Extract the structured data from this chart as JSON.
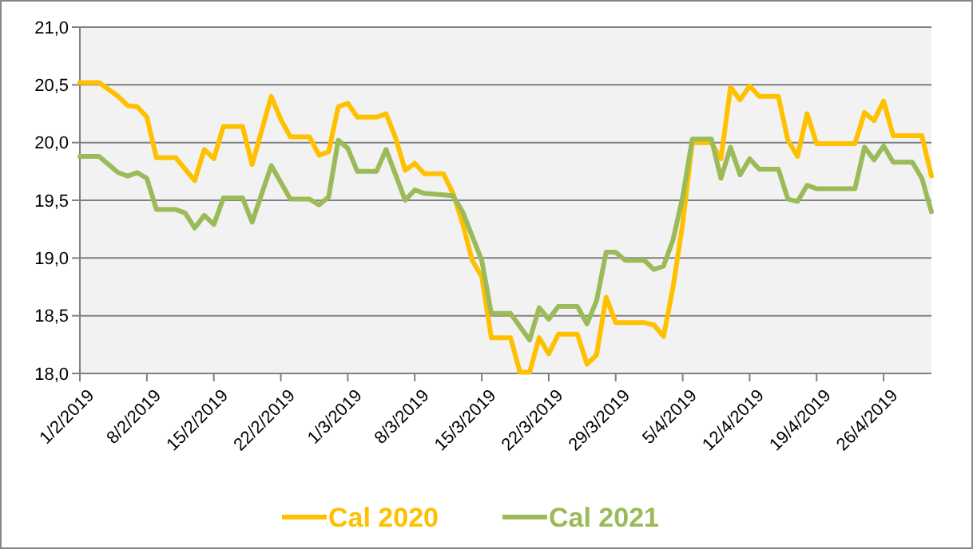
{
  "chart_data": {
    "type": "line",
    "ylim": [
      18,
      21
    ],
    "yticks": [
      {
        "value": 18,
        "label": "18,0"
      },
      {
        "value": 18.5,
        "label": "18,5"
      },
      {
        "value": 19,
        "label": "19,0"
      },
      {
        "value": 19.5,
        "label": "19,5"
      },
      {
        "value": 20,
        "label": "20,0"
      },
      {
        "value": 20.5,
        "label": "20,5"
      },
      {
        "value": 21,
        "label": "21,0"
      }
    ],
    "xlim": [
      "2019-02-01",
      "2019-05-01"
    ],
    "xticks": [
      {
        "value": "2019-02-01",
        "label": "1/2/2019"
      },
      {
        "value": "2019-02-08",
        "label": "8/2/2019"
      },
      {
        "value": "2019-02-15",
        "label": "15/2/2019"
      },
      {
        "value": "2019-02-22",
        "label": "22/2/2019"
      },
      {
        "value": "2019-03-01",
        "label": "1/3/2019"
      },
      {
        "value": "2019-03-08",
        "label": "8/3/2019"
      },
      {
        "value": "2019-03-15",
        "label": "15/3/2019"
      },
      {
        "value": "2019-03-22",
        "label": "22/3/2019"
      },
      {
        "value": "2019-03-29",
        "label": "29/3/2019"
      },
      {
        "value": "2019-04-05",
        "label": "5/4/2019"
      },
      {
        "value": "2019-04-12",
        "label": "12/4/2019"
      },
      {
        "value": "2019-04-19",
        "label": "19/4/2019"
      },
      {
        "value": "2019-04-26",
        "label": "26/4/2019"
      }
    ],
    "grid": "y",
    "legend": "bottom",
    "marker": "none",
    "line_style": "solid",
    "series": [
      {
        "name": "Cal 2020",
        "color": "#ffc000",
        "x": [
          "2019-02-01",
          "2019-02-03",
          "2019-02-05",
          "2019-02-06",
          "2019-02-07",
          "2019-02-08",
          "2019-02-09",
          "2019-02-11",
          "2019-02-13",
          "2019-02-14",
          "2019-02-15",
          "2019-02-16",
          "2019-02-18",
          "2019-02-19",
          "2019-02-21",
          "2019-02-22",
          "2019-02-23",
          "2019-02-25",
          "2019-02-26",
          "2019-02-27",
          "2019-02-28",
          "2019-03-01",
          "2019-03-02",
          "2019-03-04",
          "2019-03-05",
          "2019-03-06",
          "2019-03-07",
          "2019-03-08",
          "2019-03-09",
          "2019-03-11",
          "2019-03-12",
          "2019-03-13",
          "2019-03-14",
          "2019-03-15",
          "2019-03-16",
          "2019-03-18",
          "2019-03-19",
          "2019-03-20",
          "2019-03-21",
          "2019-03-22",
          "2019-03-23",
          "2019-03-25",
          "2019-03-26",
          "2019-03-27",
          "2019-03-28",
          "2019-03-29",
          "2019-04-01",
          "2019-04-02",
          "2019-04-03",
          "2019-04-04",
          "2019-04-05",
          "2019-04-06",
          "2019-04-08",
          "2019-04-09",
          "2019-04-10",
          "2019-04-11",
          "2019-04-12",
          "2019-04-13",
          "2019-04-15",
          "2019-04-16",
          "2019-04-17",
          "2019-04-18",
          "2019-04-19",
          "2019-04-23",
          "2019-04-24",
          "2019-04-25",
          "2019-04-26",
          "2019-04-27",
          "2019-04-30",
          "2019-05-01"
        ],
        "values": [
          20.52,
          20.52,
          20.4,
          20.32,
          20.31,
          20.22,
          19.87,
          19.87,
          19.67,
          19.94,
          19.86,
          20.14,
          20.14,
          19.81,
          20.4,
          20.2,
          20.05,
          20.05,
          19.89,
          19.92,
          20.31,
          20.34,
          20.22,
          20.22,
          20.25,
          20.04,
          19.76,
          19.82,
          19.73,
          19.73,
          19.56,
          19.3,
          18.98,
          18.84,
          18.31,
          18.31,
          18.01,
          18.01,
          18.31,
          18.17,
          18.34,
          18.34,
          18.08,
          18.16,
          18.66,
          18.44,
          18.44,
          18.42,
          18.32,
          18.75,
          19.3,
          20.0,
          20.0,
          19.86,
          20.48,
          20.37,
          20.49,
          20.4,
          20.4,
          20.02,
          19.88,
          20.25,
          19.99,
          19.99,
          20.26,
          20.19,
          20.36,
          20.06,
          20.06,
          19.71
        ]
      },
      {
        "name": "Cal 2021",
        "color": "#9bbb59",
        "x": [
          "2019-02-01",
          "2019-02-03",
          "2019-02-05",
          "2019-02-06",
          "2019-02-07",
          "2019-02-08",
          "2019-02-09",
          "2019-02-11",
          "2019-02-12",
          "2019-02-13",
          "2019-02-14",
          "2019-02-15",
          "2019-02-16",
          "2019-02-18",
          "2019-02-19",
          "2019-02-21",
          "2019-02-23",
          "2019-02-25",
          "2019-02-26",
          "2019-02-27",
          "2019-02-28",
          "2019-03-01",
          "2019-03-02",
          "2019-03-04",
          "2019-03-05",
          "2019-03-07",
          "2019-03-08",
          "2019-03-09",
          "2019-03-12",
          "2019-03-13",
          "2019-03-14",
          "2019-03-15",
          "2019-03-16",
          "2019-03-18",
          "2019-03-20",
          "2019-03-21",
          "2019-03-22",
          "2019-03-23",
          "2019-03-25",
          "2019-03-26",
          "2019-03-27",
          "2019-03-28",
          "2019-03-29",
          "2019-03-30",
          "2019-04-01",
          "2019-04-02",
          "2019-04-03",
          "2019-04-04",
          "2019-04-05",
          "2019-04-06",
          "2019-04-08",
          "2019-04-09",
          "2019-04-10",
          "2019-04-11",
          "2019-04-12",
          "2019-04-13",
          "2019-04-15",
          "2019-04-16",
          "2019-04-17",
          "2019-04-18",
          "2019-04-19",
          "2019-04-23",
          "2019-04-24",
          "2019-04-25",
          "2019-04-26",
          "2019-04-27",
          "2019-04-29",
          "2019-04-30",
          "2019-05-01"
        ],
        "values": [
          19.88,
          19.88,
          19.74,
          19.71,
          19.74,
          19.69,
          19.42,
          19.42,
          19.39,
          19.26,
          19.37,
          19.29,
          19.52,
          19.52,
          19.31,
          19.8,
          19.51,
          19.51,
          19.46,
          19.53,
          20.02,
          19.95,
          19.75,
          19.75,
          19.94,
          19.5,
          19.59,
          19.56,
          19.54,
          19.4,
          19.19,
          18.98,
          18.52,
          18.52,
          18.29,
          18.57,
          18.47,
          18.58,
          18.58,
          18.43,
          18.63,
          19.05,
          19.05,
          18.98,
          18.98,
          18.9,
          18.93,
          19.16,
          19.53,
          20.03,
          20.03,
          19.69,
          19.96,
          19.72,
          19.86,
          19.77,
          19.77,
          19.51,
          19.49,
          19.63,
          19.6,
          19.6,
          19.96,
          19.85,
          19.97,
          19.83,
          19.83,
          19.69,
          19.4
        ]
      }
    ]
  }
}
